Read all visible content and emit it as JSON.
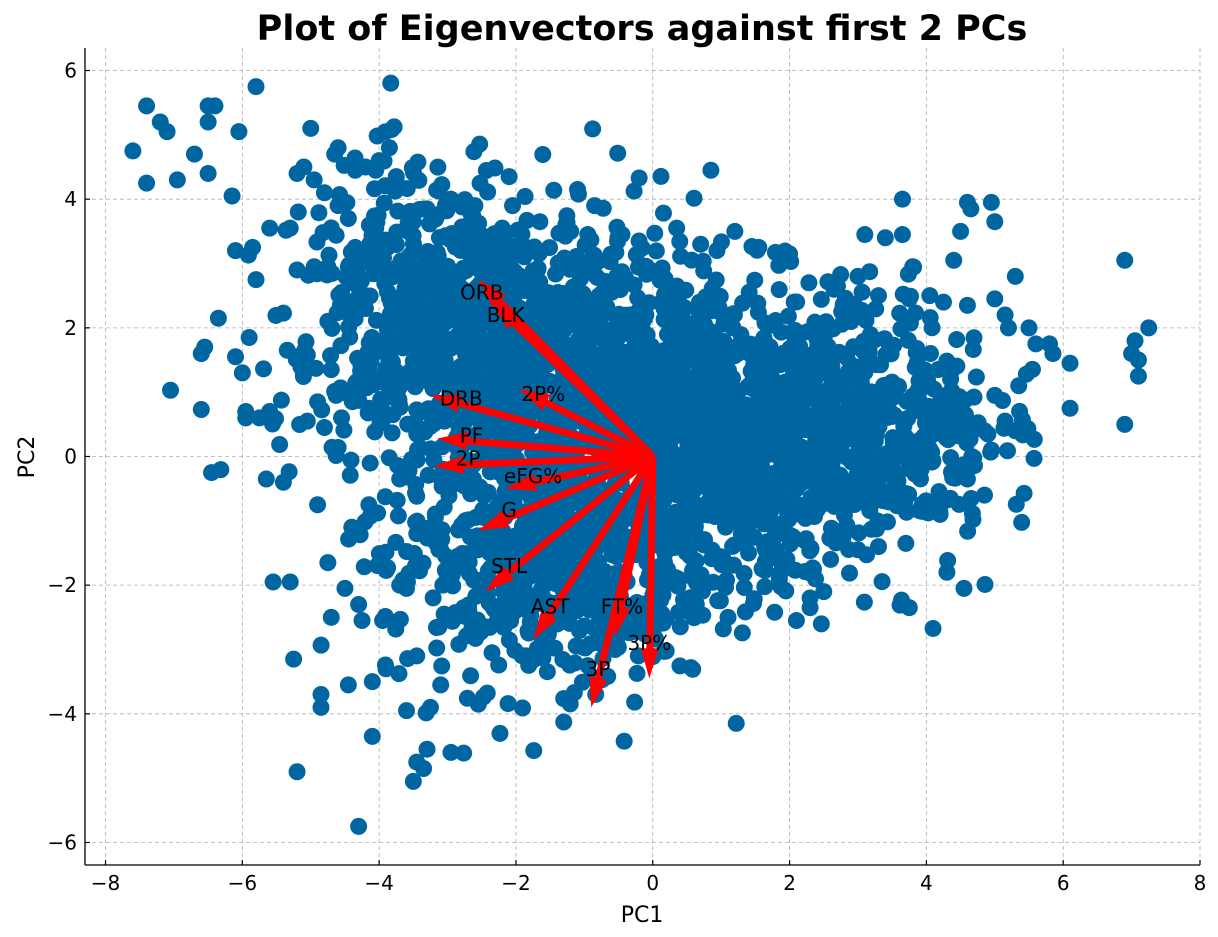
{
  "chart_data": {
    "type": "scatter",
    "title": "Plot of Eigenvectors against first 2 PCs",
    "xlabel": "PC1",
    "ylabel": "PC2",
    "xlim": [
      -8.3,
      8.0
    ],
    "ylim": [
      -6.35,
      6.35
    ],
    "xticks": [
      -8,
      -6,
      -4,
      -2,
      0,
      2,
      4,
      6,
      8
    ],
    "yticks": [
      -6,
      -4,
      -2,
      0,
      2,
      4,
      6
    ],
    "xtick_labels": [
      "−8",
      "−6",
      "−4",
      "−2",
      "0",
      "2",
      "4",
      "6",
      "8"
    ],
    "ytick_labels": [
      "−6",
      "−4",
      "−2",
      "0",
      "2",
      "4",
      "6"
    ],
    "grid": true,
    "point_color": "#0066a1",
    "arrow_color": "#ff0000",
    "points": [
      [
        -7.6,
        4.75
      ],
      [
        -7.4,
        5.45
      ],
      [
        -7.4,
        4.25
      ],
      [
        -7.2,
        5.2
      ],
      [
        -7.1,
        5.05
      ],
      [
        -7.05,
        1.03
      ],
      [
        -6.95,
        4.3
      ],
      [
        -6.7,
        4.7
      ],
      [
        -6.6,
        0.73
      ],
      [
        -6.6,
        1.6
      ],
      [
        -6.55,
        1.7
      ],
      [
        -6.5,
        5.45
      ],
      [
        -6.5,
        5.2
      ],
      [
        -6.5,
        4.4
      ],
      [
        -6.45,
        -0.25
      ],
      [
        -6.4,
        5.45
      ],
      [
        -6.35,
        2.15
      ],
      [
        -6.15,
        4.05
      ],
      [
        -6.1,
        3.2
      ],
      [
        -6.1,
        1.55
      ],
      [
        -6.05,
        5.05
      ],
      [
        -6.0,
        1.3
      ],
      [
        -5.95,
        0.7
      ],
      [
        -5.95,
        0.6
      ],
      [
        -5.9,
        1.85
      ],
      [
        -5.85,
        3.25
      ],
      [
        -5.8,
        5.75
      ],
      [
        -5.8,
        2.75
      ],
      [
        -5.75,
        0.6
      ],
      [
        -5.6,
        0.7
      ],
      [
        -5.6,
        3.55
      ],
      [
        -5.65,
        -0.35
      ],
      [
        -5.55,
        -1.95
      ],
      [
        -5.4,
        -0.4
      ],
      [
        -5.3,
        3.55
      ],
      [
        -5.3,
        -1.95
      ],
      [
        -5.25,
        -3.15
      ],
      [
        -5.2,
        -4.9
      ],
      [
        -5.2,
        1.55
      ],
      [
        -5.2,
        2.9
      ],
      [
        -5.2,
        4.4
      ],
      [
        -5.1,
        4.5
      ],
      [
        -5.0,
        5.1
      ],
      [
        -4.95,
        4.3
      ],
      [
        -4.9,
        -0.75
      ],
      [
        -4.85,
        -3.7
      ],
      [
        -4.85,
        -3.9
      ],
      [
        -4.8,
        4.1
      ],
      [
        -4.75,
        -1.65
      ],
      [
        -4.7,
        -2.5
      ],
      [
        -4.65,
        4.7
      ],
      [
        -4.6,
        4.8
      ],
      [
        -4.55,
        0.6
      ],
      [
        -4.5,
        -2.05
      ],
      [
        -4.45,
        -3.55
      ],
      [
        -4.35,
        4.45
      ],
      [
        -4.3,
        -5.75
      ],
      [
        -4.3,
        -2.3
      ],
      [
        -4.25,
        -2.55
      ],
      [
        -4.2,
        4.5
      ],
      [
        -4.1,
        -4.35
      ],
      [
        -4.1,
        -3.5
      ],
      [
        -4.05,
        4.45
      ],
      [
        -4.0,
        4.6
      ],
      [
        -3.95,
        -2.55
      ],
      [
        -3.9,
        -3.3
      ],
      [
        -3.85,
        4.8
      ],
      [
        -3.75,
        4.35
      ],
      [
        -3.6,
        -3.95
      ],
      [
        -3.6,
        -2.05
      ],
      [
        -3.5,
        -5.05
      ],
      [
        -3.45,
        -4.75
      ],
      [
        -3.35,
        -4.85
      ],
      [
        -3.3,
        -4.55
      ],
      [
        -3.25,
        -3.9
      ],
      [
        -3.1,
        -3.55
      ],
      [
        -2.95,
        -4.6
      ],
      [
        -2.55,
        -3.85
      ],
      [
        -2.1,
        4.35
      ],
      [
        -2.05,
        3.9
      ],
      [
        -1.1,
        4.15
      ],
      [
        -0.85,
        3.9
      ],
      [
        0.85,
        4.45
      ],
      [
        0.5,
        -2.4
      ],
      [
        1.1,
        -2.5
      ],
      [
        2.1,
        -2.55
      ],
      [
        2.3,
        -2.35
      ],
      [
        2.3,
        -2.2
      ],
      [
        2.5,
        -2.1
      ],
      [
        2.7,
        2.65
      ],
      [
        3.0,
        2.8
      ],
      [
        3.1,
        3.45
      ],
      [
        3.4,
        3.4
      ],
      [
        3.65,
        3.45
      ],
      [
        3.65,
        4.0
      ],
      [
        3.75,
        -2.35
      ],
      [
        3.8,
        2.95
      ],
      [
        4.25,
        2.4
      ],
      [
        4.3,
        -1.8
      ],
      [
        4.4,
        3.05
      ],
      [
        4.5,
        3.5
      ],
      [
        4.55,
        -2.05
      ],
      [
        4.6,
        3.95
      ],
      [
        4.65,
        3.85
      ],
      [
        4.85,
        -0.6
      ],
      [
        4.95,
        3.95
      ],
      [
        5.0,
        3.65
      ],
      [
        5.0,
        2.45
      ],
      [
        5.2,
        2.0
      ],
      [
        5.3,
        2.8
      ],
      [
        5.5,
        2.0
      ],
      [
        5.8,
        1.75
      ],
      [
        5.85,
        1.6
      ],
      [
        6.1,
        1.45
      ],
      [
        6.1,
        0.75
      ],
      [
        6.9,
        3.05
      ],
      [
        6.9,
        0.5
      ],
      [
        7.0,
        1.6
      ],
      [
        7.05,
        1.8
      ],
      [
        7.1,
        1.5
      ],
      [
        7.1,
        1.25
      ],
      [
        7.25,
        2.0
      ],
      [
        5.0,
        0.95
      ],
      [
        4.95,
        0.1
      ],
      [
        4.85,
        0.4
      ],
      [
        4.6,
        -0.35
      ],
      [
        4.35,
        -0.65
      ],
      [
        4.2,
        -0.9
      ],
      [
        3.7,
        -1.35
      ],
      [
        3.3,
        -1.4
      ],
      [
        3.0,
        -1.45
      ],
      [
        2.6,
        -1.6
      ],
      [
        2.35,
        -1.75
      ],
      [
        1.85,
        -1.9
      ],
      [
        -3.45,
        -3.1
      ],
      [
        -3.7,
        -2.0
      ],
      [
        -4.4,
        -1.1
      ],
      [
        -4.15,
        -0.75
      ],
      [
        -3.7,
        -0.35
      ],
      [
        -3.45,
        0.35
      ],
      [
        -3.8,
        0.65
      ],
      [
        -4.15,
        0.75
      ],
      [
        -4.8,
        0.45
      ],
      [
        -4.9,
        0.85
      ],
      [
        -5.05,
        0.55
      ],
      [
        -4.7,
        1.35
      ],
      [
        -4.75,
        2.1
      ],
      [
        -4.55,
        2.55
      ],
      [
        -4.2,
        2.3
      ],
      [
        -4.75,
        2.95
      ],
      [
        -4.95,
        2.95
      ],
      [
        -4.45,
        2.95
      ],
      [
        -3.85,
        3.3
      ],
      [
        -4.05,
        3.55
      ],
      [
        -4.45,
        3.7
      ],
      [
        -4.6,
        3.9
      ],
      [
        -4.35,
        3.25
      ],
      [
        -3.5,
        3.65
      ],
      [
        -3.3,
        3.85
      ],
      [
        -2.95,
        4.0
      ],
      [
        -2.6,
        3.9
      ],
      [
        -2.2,
        3.55
      ],
      [
        -1.65,
        3.65
      ],
      [
        -1.2,
        3.5
      ],
      [
        -0.95,
        3.45
      ],
      [
        -0.45,
        3.45
      ],
      [
        -0.2,
        3.35
      ],
      [
        0.35,
        3.55
      ],
      [
        0.7,
        3.3
      ],
      [
        1.2,
        3.5
      ],
      [
        1.55,
        3.25
      ],
      [
        2.0,
        3.15
      ],
      [
        2.65,
        2.6
      ],
      [
        3.3,
        2.5
      ],
      [
        3.75,
        2.45
      ],
      [
        4.05,
        2.5
      ],
      [
        4.6,
        2.35
      ],
      [
        5.15,
        2.2
      ],
      [
        5.6,
        1.75
      ],
      [
        5.35,
        1.1
      ],
      [
        5.15,
        0.55
      ],
      [
        5.3,
        0.4
      ],
      [
        4.9,
        0.35
      ],
      [
        -2.75,
        -0.25
      ],
      [
        -3.2,
        -0.05
      ],
      [
        -2.55,
        0.65
      ],
      [
        -2.9,
        1.25
      ],
      [
        -2.3,
        1.85
      ],
      [
        -1.6,
        2.35
      ],
      [
        -1.1,
        2.4
      ],
      [
        -2.0,
        -1.25
      ],
      [
        -1.55,
        -2.3
      ],
      [
        -0.55,
        -3.0
      ],
      [
        0.15,
        -2.15
      ],
      [
        1.4,
        -1.5
      ],
      [
        1.85,
        -1.2
      ],
      [
        -0.95,
        -3.25
      ],
      [
        -1.85,
        -3.1
      ],
      [
        -2.35,
        -3.05
      ],
      [
        -3.05,
        -2.45
      ],
      [
        -2.85,
        -1.55
      ],
      [
        -3.1,
        -1.45
      ],
      [
        -3.45,
        -1.2
      ]
    ],
    "arrows": [
      {
        "label": "ORB",
        "x": -2.55,
        "y": 2.75,
        "lx": -2.5,
        "ly": 2.55
      },
      {
        "label": "BLK",
        "x": -2.35,
        "y": 2.4,
        "lx": -2.15,
        "ly": 2.2
      },
      {
        "label": "2P%",
        "x": -1.95,
        "y": 1.05,
        "lx": -1.6,
        "ly": 0.97
      },
      {
        "label": "DRB",
        "x": -3.25,
        "y": 0.95,
        "lx": -2.8,
        "ly": 0.9
      },
      {
        "label": "PF",
        "x": -3.15,
        "y": 0.28,
        "lx": -2.65,
        "ly": 0.33
      },
      {
        "label": "2P",
        "x": -3.2,
        "y": -0.15,
        "lx": -2.7,
        "ly": -0.03
      },
      {
        "label": "eFG%",
        "x": -2.15,
        "y": -0.5,
        "lx": -1.75,
        "ly": -0.3
      },
      {
        "label": "G",
        "x": -2.55,
        "y": -1.15,
        "lx": -2.1,
        "ly": -0.83
      },
      {
        "label": "STL",
        "x": -2.45,
        "y": -2.1,
        "lx": -2.1,
        "ly": -1.7
      },
      {
        "label": "AST",
        "x": -1.75,
        "y": -2.85,
        "lx": -1.5,
        "ly": -2.33
      },
      {
        "label": "FT%",
        "x": -0.55,
        "y": -2.8,
        "lx": -0.45,
        "ly": -2.33
      },
      {
        "label": "3P%",
        "x": -0.05,
        "y": -3.45,
        "lx": -0.05,
        "ly": -2.9
      },
      {
        "label": "3P",
        "x": -0.9,
        "y": -3.9,
        "lx": -0.8,
        "ly": -3.3
      }
    ]
  }
}
